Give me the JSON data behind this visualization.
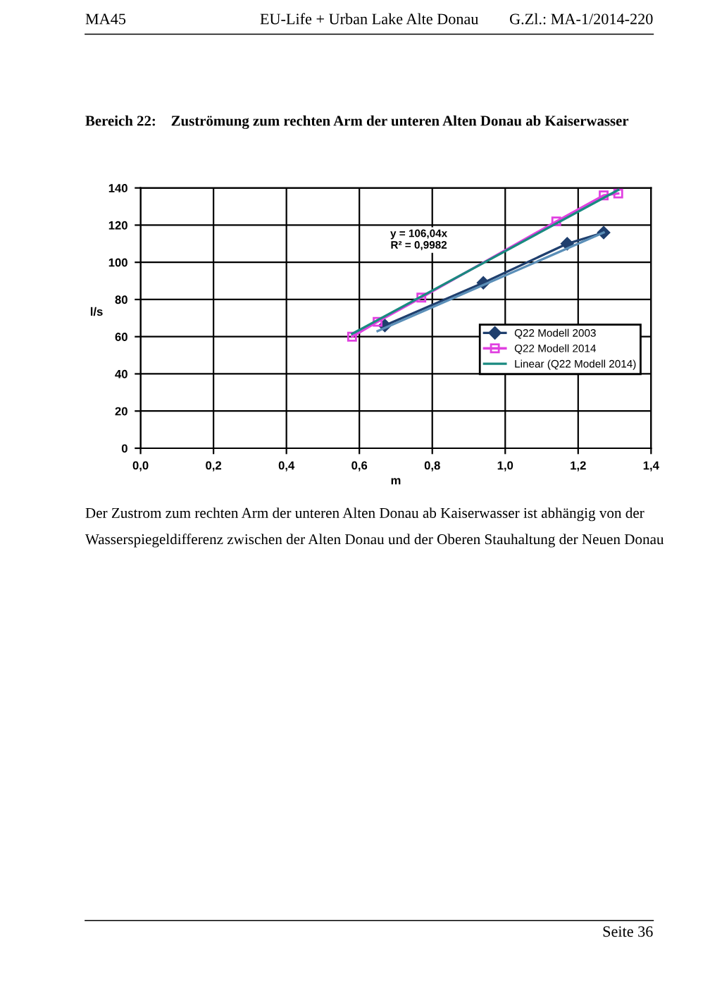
{
  "chart_data": {
    "type": "line",
    "title": "Bereich 22:    Zuströmung zum rechten Arm der unteren Alten Donau ab Kaiserwasser",
    "xlabel": "m",
    "ylabel": "l/s",
    "xlim": [
      0,
      1.4
    ],
    "xticks": [
      {
        "value": 0,
        "label": "0,0"
      },
      {
        "value": 0.2,
        "label": "0,2"
      },
      {
        "value": 0.4,
        "label": "0,4"
      },
      {
        "value": 0.6,
        "label": "0,6"
      },
      {
        "value": 0.8,
        "label": "0,8"
      },
      {
        "value": 1.0,
        "label": "1,0"
      },
      {
        "value": 1.2,
        "label": "1,2"
      },
      {
        "value": 1.4,
        "label": "1,4"
      }
    ],
    "ylim": [
      0,
      140
    ],
    "yticks": [
      0,
      20,
      40,
      60,
      80,
      100,
      120,
      140
    ],
    "grid": true,
    "legend": "right",
    "series": [
      {
        "name": "Q22 Modell 2003",
        "color": "#1f3f6e",
        "marker": "diamond",
        "x": [
          0.67,
          0.94,
          1.17,
          1.27
        ],
        "values": [
          66,
          89,
          110,
          116
        ]
      },
      {
        "color": "#5b8fb8",
        "marker": "none",
        "x": [
          0.65,
          1.27
        ],
        "values": [
          63,
          116
        ]
      },
      {
        "name": "Q22 Modell 2014",
        "color": "#e040e0",
        "marker": "square",
        "x": [
          0.58,
          0.65,
          0.77,
          1.14,
          1.27,
          1.31
        ],
        "values": [
          60,
          68,
          81,
          122,
          136,
          137
        ]
      },
      {
        "name": "Linear (Q22 Modell 2014)",
        "color": "#1a8a80",
        "marker": "none",
        "x": [
          0.58,
          1.31
        ],
        "values": [
          61.5,
          138.9
        ]
      }
    ],
    "annotations": [
      "MA45",
      "EU-Life + Urban Lake Alte Donau",
      "G.Zl.: MA-1/2014-220",
      "y = 106,04x\nR² = 0,9982",
      "Der Zustrom zum rechten Arm der unteren Alten Donau ab Kaiserwasser ist abhängig von der",
      "Wasserspiegeldifferenz zwischen der Alten Donau und der Oberen Stauhaltung der Neuen Donau",
      "Seite 36"
    ]
  }
}
